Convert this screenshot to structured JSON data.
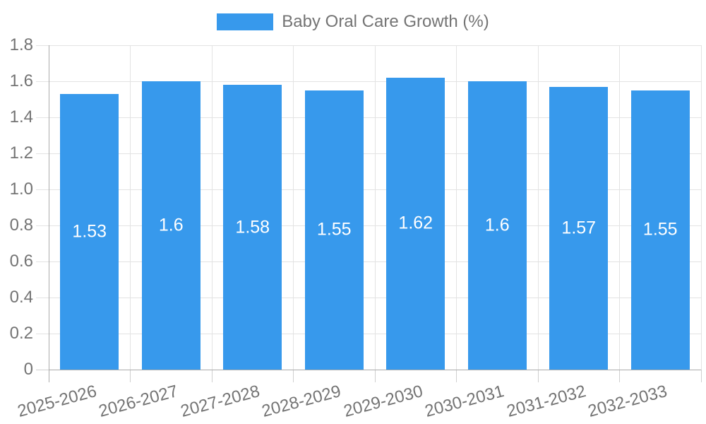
{
  "legend": {
    "label": "Baby Oral Care Growth (%)"
  },
  "colors": {
    "bar": "#3799EC",
    "text": "#747474",
    "value_label": "#FFFFFF",
    "axis": "#ABABAB",
    "grid": "#E3E3E3",
    "tick": "#CFCFCF",
    "background": "#FFFFFF"
  },
  "chart_data": {
    "type": "bar",
    "title": "",
    "legend_entries": [
      "Baby Oral Care Growth (%)"
    ],
    "legend_position": "top-center",
    "categories": [
      "2025-2026",
      "2026-2027",
      "2027-2028",
      "2028-2029",
      "2029-2030",
      "2030-2031",
      "2031-2032",
      "2032-2033"
    ],
    "values": [
      1.53,
      1.6,
      1.58,
      1.55,
      1.62,
      1.6,
      1.57,
      1.55
    ],
    "value_labels": [
      "1.53",
      "1.6",
      "1.58",
      "1.55",
      "1.62",
      "1.6",
      "1.57",
      "1.55"
    ],
    "series_name": "Baby Oral Care Growth (%)",
    "xlabel": "",
    "ylabel": "",
    "ylim": [
      0,
      1.8
    ],
    "ytick_step": 0.2,
    "yticks": [
      "0",
      "0.2",
      "0.4",
      "0.6",
      "0.8",
      "1.0",
      "1.2",
      "1.4",
      "1.6",
      "1.8"
    ],
    "grid": true,
    "value_labels_inside_bars": true,
    "x_label_rotation_deg": -15
  }
}
